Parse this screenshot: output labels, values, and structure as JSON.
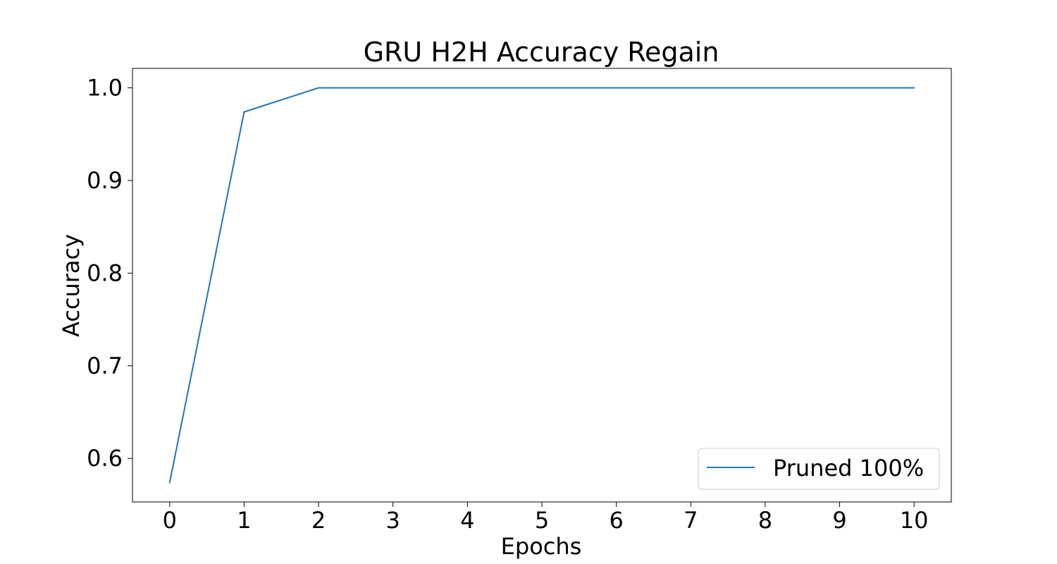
{
  "chart_data": {
    "type": "line",
    "title": "GRU H2H Accuracy Regain",
    "xlabel": "Epochs",
    "ylabel": "Accuracy",
    "xlim": [
      -0.5,
      10.5
    ],
    "ylim": [
      0.553,
      1.021
    ],
    "x_ticks": [
      0,
      1,
      2,
      3,
      4,
      5,
      6,
      7,
      8,
      9,
      10
    ],
    "y_ticks": [
      0.6,
      0.7,
      0.8,
      0.9,
      1.0
    ],
    "y_tick_labels": [
      "0.6",
      "0.7",
      "0.8",
      "0.9",
      "1.0"
    ],
    "grid": false,
    "legend_position": "lower-right",
    "x": [
      0,
      1,
      2,
      3,
      4,
      5,
      6,
      7,
      8,
      9,
      10
    ],
    "series": [
      {
        "name": "Pruned 100%",
        "color": "#1f77b4",
        "values": [
          0.574,
          0.974,
          1.0,
          1.0,
          1.0,
          1.0,
          1.0,
          1.0,
          1.0,
          1.0,
          1.0
        ]
      }
    ]
  }
}
